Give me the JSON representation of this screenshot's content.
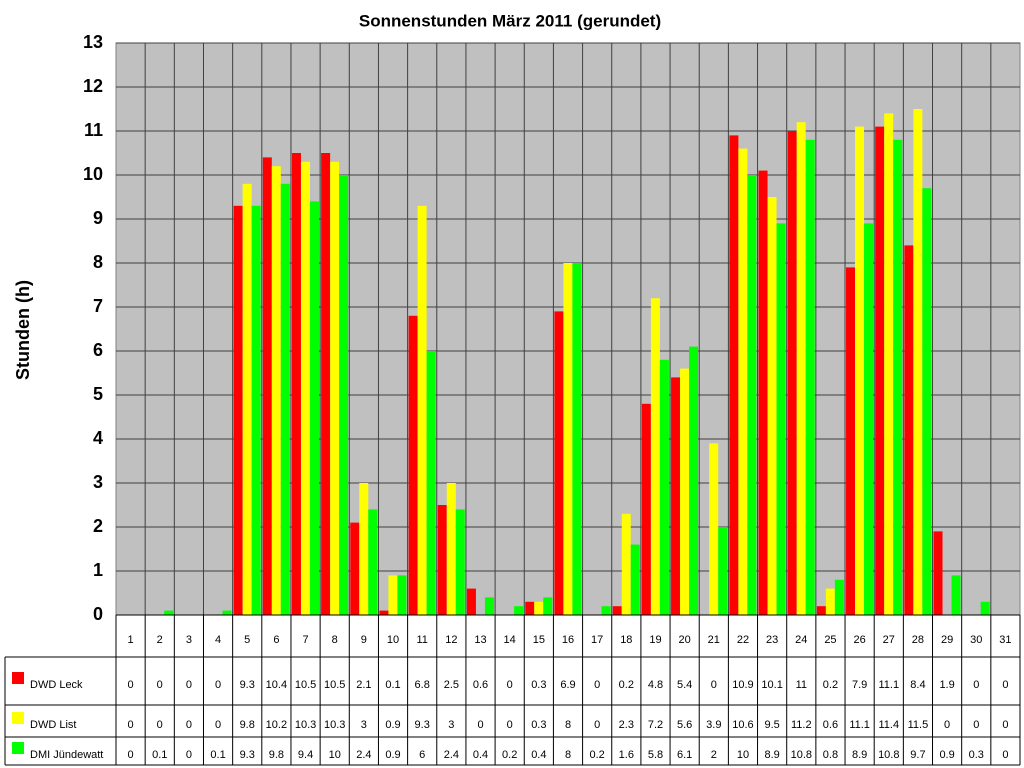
{
  "chart_data": {
    "type": "bar",
    "title": "Sonnenstunden März 2011 (gerundet)",
    "y_label": "Stunden (h)",
    "categories": [
      "1",
      "2",
      "3",
      "4",
      "5",
      "6",
      "7",
      "8",
      "9",
      "10",
      "11",
      "12",
      "13",
      "14",
      "15",
      "16",
      "17",
      "18",
      "19",
      "20",
      "21",
      "22",
      "23",
      "24",
      "25",
      "26",
      "27",
      "28",
      "29",
      "30",
      "31"
    ],
    "series": [
      {
        "name": "DWD Leck",
        "color": "#ff0000",
        "values": [
          0,
          0,
          0,
          0,
          9.3,
          10.4,
          10.5,
          10.5,
          2.1,
          0.1,
          6.8,
          2.5,
          0.6,
          0,
          0.3,
          6.9,
          0,
          0.2,
          4.8,
          5.4,
          0,
          10.9,
          10.1,
          11,
          0.2,
          7.9,
          11.1,
          8.4,
          1.9,
          0,
          0
        ]
      },
      {
        "name": "DWD List",
        "color": "#ffff00",
        "values": [
          0,
          0,
          0,
          0,
          9.8,
          10.2,
          10.3,
          10.3,
          3,
          0.9,
          9.3,
          3,
          0,
          0,
          0.3,
          8,
          0,
          2.3,
          7.2,
          5.6,
          3.9,
          10.6,
          9.5,
          11.2,
          0.6,
          11.1,
          11.4,
          11.5,
          0,
          0,
          0
        ]
      },
      {
        "name": "DMI Jündewatt",
        "color": "#00ff00",
        "values": [
          0,
          0.1,
          0,
          0.1,
          9.3,
          9.8,
          9.4,
          10,
          2.4,
          0.9,
          6,
          2.4,
          0.4,
          0.2,
          0.4,
          8,
          0.2,
          1.6,
          5.8,
          6.1,
          2,
          10,
          8.9,
          10.8,
          0.8,
          8.9,
          10.8,
          9.7,
          0.9,
          0.3,
          0
        ]
      }
    ],
    "ylim": [
      0,
      13
    ],
    "yticks": [
      0,
      1,
      2,
      3,
      4,
      5,
      6,
      7,
      8,
      9,
      10,
      11,
      12,
      13
    ],
    "grid": true
  }
}
